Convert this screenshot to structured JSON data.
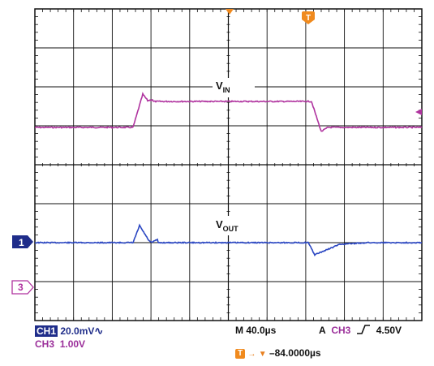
{
  "screen": {
    "labels": {
      "vin": "V",
      "vin_sub": "IN",
      "vout": "V",
      "vout_sub": "OUT",
      "marker1": "1",
      "marker3": "3",
      "trigger_icon": "T"
    }
  },
  "readout": {
    "ch1_tag": "CH1",
    "ch1_scale": "20.0mV",
    "ch1_coupling_icon": "ac-coupling-icon",
    "ch3_tag": "CH3",
    "ch3_scale": "1.00V",
    "timebase": "M 40.0µs",
    "trigger_mode": "A",
    "trigger_source": "CH3",
    "trigger_slope_icon": "rising-edge-icon",
    "trigger_level": "4.50V",
    "trigger_pos_icon": "T",
    "trigger_offset": "–84.0000µs"
  },
  "colors": {
    "ch1": "#2a46c2",
    "ch3": "#b0339f",
    "trigger": "#f08a1e",
    "grid": "#111111"
  }
}
